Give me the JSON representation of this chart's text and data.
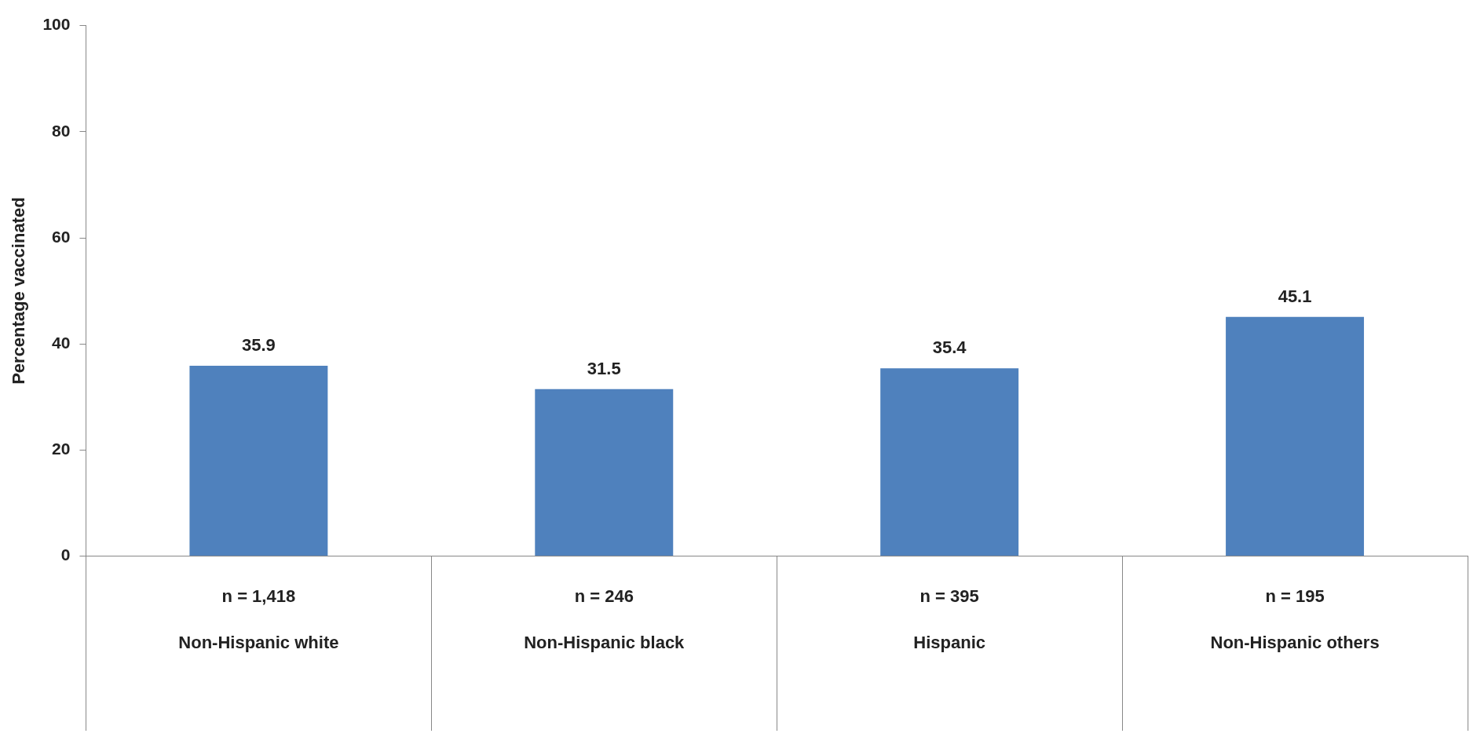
{
  "chart_data": {
    "type": "bar",
    "ylabel": "Percentage vaccinated",
    "categories": [
      "Non-Hispanic white",
      "Non-Hispanic black",
      "Hispanic",
      "Non-Hispanic others"
    ],
    "values": [
      35.9,
      31.5,
      35.4,
      45.1
    ],
    "color": "#4f81bd",
    "ylim": [
      0,
      100
    ],
    "yticks": [
      0,
      20,
      40,
      60,
      80,
      100
    ],
    "grid": false,
    "legend": false,
    "data_labels": true,
    "annotations": [
      "n = 1,418",
      "n = 246",
      "n = 395",
      "n = 195"
    ]
  }
}
